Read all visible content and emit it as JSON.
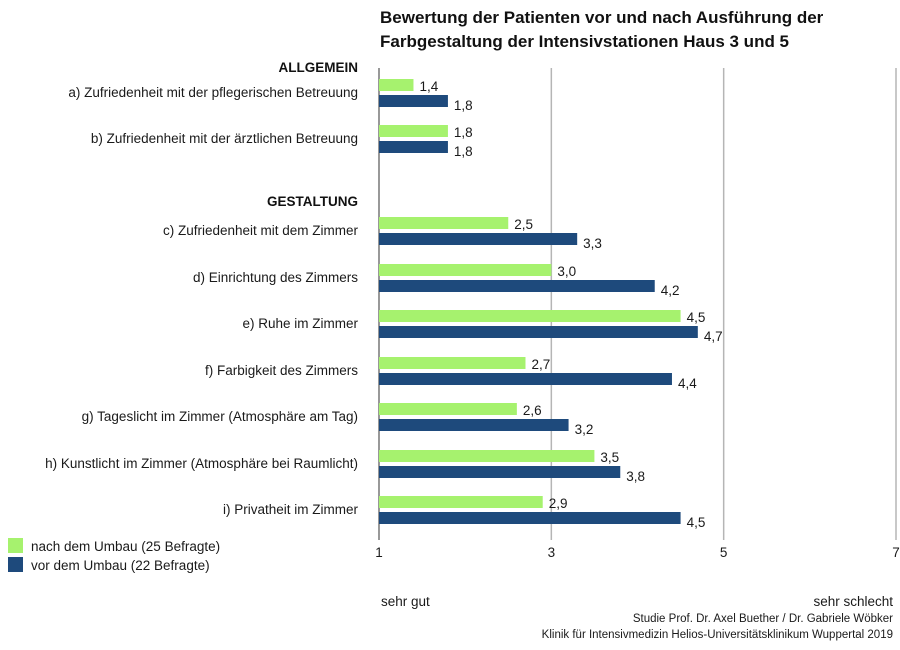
{
  "chart_data": {
    "type": "bar",
    "orientation": "horizontal",
    "title": "Bewertung der Patienten vor und nach Ausführung der Farbgestaltung der Intensivstationen Haus 3 und 5",
    "title_lines": [
      "Bewertung der Patienten vor und nach Ausführung der",
      "Farbgestaltung der Intensivstationen Haus 3 und 5"
    ],
    "sections": [
      {
        "label": "ALLGEMEIN",
        "categories": [
          "a) Zufriedenheit mit der pflegerischen Betreuung",
          "b) Zufriedenheit mit der ärztlichen Betreuung"
        ]
      },
      {
        "label": "GESTALTUNG",
        "categories": [
          "c) Zufriedenheit mit dem Zimmer",
          "d) Einrichtung des Zimmers",
          "e) Ruhe im Zimmer",
          "f) Farbigkeit des Zimmers",
          "g) Tageslicht im Zimmer (Atmosphäre am Tag)",
          "h) Kunstlicht im Zimmer (Atmosphäre bei Raumlicht)",
          "i) Privatheit im Zimmer"
        ]
      }
    ],
    "categories": [
      "a) Zufriedenheit mit der pflegerischen Betreuung",
      "b) Zufriedenheit mit der ärztlichen Betreuung",
      "c) Zufriedenheit mit dem Zimmer",
      "d) Einrichtung des Zimmers",
      "e) Ruhe im Zimmer",
      "f) Farbigkeit des Zimmers",
      "g) Tageslicht im Zimmer (Atmosphäre am Tag)",
      "h) Kunstlicht im Zimmer (Atmosphäre bei Raumlicht)",
      "i) Privatheit im Zimmer"
    ],
    "series": [
      {
        "name": "nach dem Umbau (25 Befragte)",
        "color": "#a6f26e",
        "values": [
          1.4,
          1.8,
          2.5,
          3.0,
          4.5,
          2.7,
          2.6,
          3.5,
          2.9
        ],
        "labels": [
          "1,4",
          "1,8",
          "2,5",
          "3,0",
          "4,5",
          "2,7",
          "2,6",
          "3,5",
          "2,9"
        ]
      },
      {
        "name": "vor dem Umbau (22 Befragte)",
        "color": "#1e4a7c",
        "values": [
          1.8,
          1.8,
          3.3,
          4.2,
          4.7,
          4.4,
          3.2,
          3.8,
          4.5
        ],
        "labels": [
          "1,8",
          "1,8",
          "3,3",
          "4,2",
          "4,7",
          "4,4",
          "3,2",
          "3,8",
          "4,5"
        ]
      }
    ],
    "xlim": [
      1,
      7
    ],
    "xticks": [
      1,
      3,
      5,
      7
    ],
    "xtick_labels": [
      "1",
      "3",
      "5",
      "7"
    ],
    "x_axis_end_labels": {
      "low": "sehr gut",
      "high": "sehr schlecht"
    },
    "grid": true,
    "legend_position": "bottom-left",
    "footer": [
      "Studie Prof. Dr. Axel Buether / Dr. Gabriele Wöbker",
      "Klinik für Intensivmedizin Helios-Universitätsklinikum Wuppertal 2019"
    ]
  }
}
